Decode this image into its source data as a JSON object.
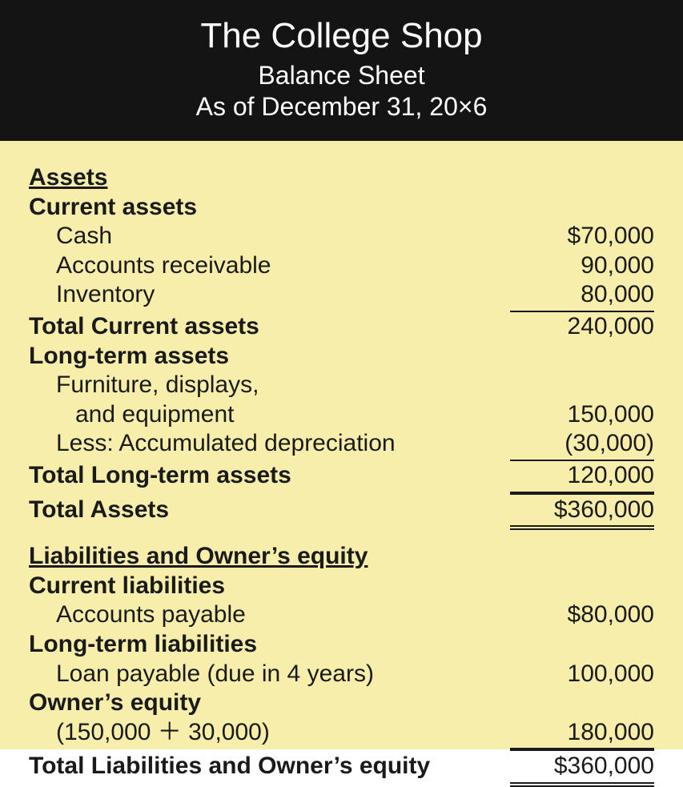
{
  "header": {
    "company": "The College Shop",
    "doc_title": "Balance Sheet",
    "date": "As of December 31, 20×6"
  },
  "colors": {
    "header_bg": "#141414",
    "header_fg": "#ffffff",
    "sheet_bg": "#f7eeab",
    "text": "#1a1a1a",
    "rule": "#1a1a1a"
  },
  "assets": {
    "section_label": "Assets",
    "current": {
      "label": "Current assets",
      "items": [
        {
          "label": "Cash",
          "value": "$70,000"
        },
        {
          "label": "Accounts receivable",
          "value": "90,000"
        },
        {
          "label": "Inventory",
          "value": "80,000"
        }
      ],
      "total_label": "Total Current assets",
      "total_value": "240,000"
    },
    "longterm": {
      "label": "Long-term assets",
      "furniture_line1": "Furniture, displays,",
      "furniture_line2": "and equipment",
      "furniture_value": "150,000",
      "less_label": "Less: Accumulated depreciation",
      "less_value": "(30,000)",
      "total_label": "Total Long-term assets",
      "total_value": "120,000"
    },
    "total_label": "Total Assets",
    "total_value": "$360,000"
  },
  "liab_eq": {
    "section_label": "Liabilities and Owner’s equity",
    "current_liab": {
      "label": "Current liabilities",
      "item_label": "Accounts payable",
      "item_value": "$80,000"
    },
    "longterm_liab": {
      "label": "Long-term liabilities",
      "item_label": "Loan payable (due in 4 years)",
      "item_value": "100,000"
    },
    "owners_eq": {
      "label": "Owner’s equity",
      "detail_label": "(150,000 ＋ 30,000)",
      "detail_value": "180,000"
    },
    "total_label": "Total Liabilities and Owner’s equity",
    "total_value": "$360,000"
  }
}
